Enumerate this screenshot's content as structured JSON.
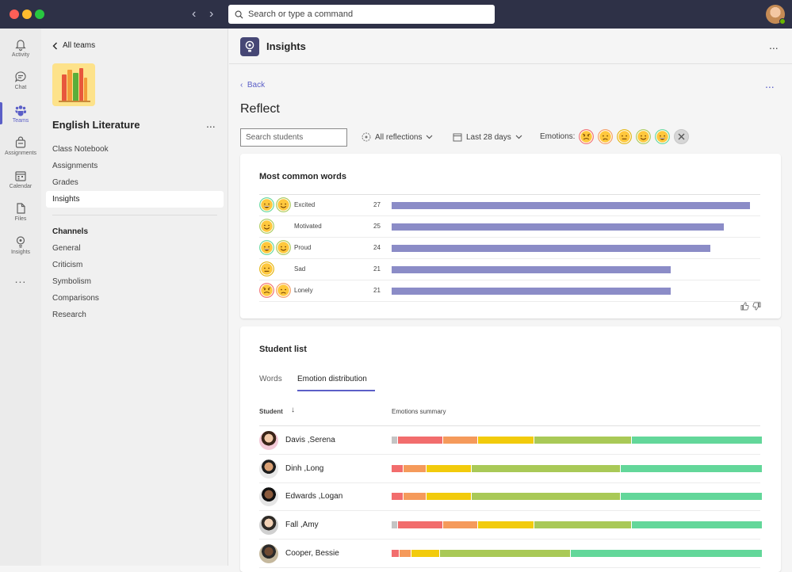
{
  "topbar": {
    "search_placeholder": "Search or type a command"
  },
  "rail": [
    {
      "label": "Activity",
      "icon": "bell-icon"
    },
    {
      "label": "Chat",
      "icon": "chat-icon"
    },
    {
      "label": "Teams",
      "icon": "teams-icon",
      "active": true
    },
    {
      "label": "Assignments",
      "icon": "assignments-icon"
    },
    {
      "label": "Calendar",
      "icon": "calendar-icon"
    },
    {
      "label": "Files",
      "icon": "files-icon"
    },
    {
      "label": "Insights",
      "icon": "insights-icon"
    }
  ],
  "rail_more": "...",
  "sidebar": {
    "back_label": "All teams",
    "team_name": "English Literature",
    "more": "...",
    "links": [
      "Class Notebook",
      "Assignments",
      "Grades",
      "Insights"
    ],
    "active_link": "Insights",
    "channels_heading": "Channels",
    "channels": [
      "General",
      "Criticism",
      "Symbolism",
      "Comparisons",
      "Research"
    ]
  },
  "header": {
    "title": "Insights",
    "more": "..."
  },
  "content": {
    "back": "Back",
    "more": "...",
    "title": "Reflect",
    "search_placeholder": "Search students",
    "reflections_filter": "All reflections",
    "date_filter": "Last 28 days",
    "emotions_label": "Emotions:"
  },
  "words_card": {
    "title": "Most common words",
    "max_value": 27,
    "rows": [
      {
        "word": "Excited",
        "count": 27,
        "emojis": [
          "laugh",
          "smile"
        ]
      },
      {
        "word": "Motivated",
        "count": 25,
        "emojis": [
          "smile"
        ]
      },
      {
        "word": "Proud",
        "count": 24,
        "emojis": [
          "laugh",
          "smile"
        ]
      },
      {
        "word": "Sad",
        "count": 21,
        "emojis": [
          "neutral"
        ]
      },
      {
        "word": "Lonely",
        "count": 21,
        "emojis": [
          "angry",
          "sad"
        ]
      }
    ]
  },
  "student_card": {
    "title": "Student list",
    "tabs": [
      "Words",
      "Emotion distribution"
    ],
    "active_tab": "Emotion distribution",
    "col_student": "Student",
    "sort_icon": "↓",
    "col_summary": "Emotions summary",
    "students": [
      {
        "name": "Davis ,Serena",
        "dist": [
          1.5,
          12,
          9,
          15,
          26,
          35
        ]
      },
      {
        "name": "Dinh ,Long",
        "dist": [
          0,
          3,
          6,
          12,
          40,
          38
        ]
      },
      {
        "name": "Edwards ,Logan",
        "dist": [
          0,
          3,
          6,
          12,
          40,
          38
        ]
      },
      {
        "name": "Fall ,Amy",
        "dist": [
          1.5,
          12,
          9,
          15,
          26,
          35
        ]
      },
      {
        "name": "Cooper, Bessie",
        "dist": [
          0,
          2,
          3,
          7.5,
          35.5,
          52
        ]
      }
    ]
  },
  "colors": {
    "accent": "#5b5fc7",
    "bar": "#8b8cc7",
    "dist": [
      "#c4c4c4",
      "#f26d6d",
      "#f59a5b",
      "#f2cb0c",
      "#a9c957",
      "#63d79a"
    ]
  }
}
